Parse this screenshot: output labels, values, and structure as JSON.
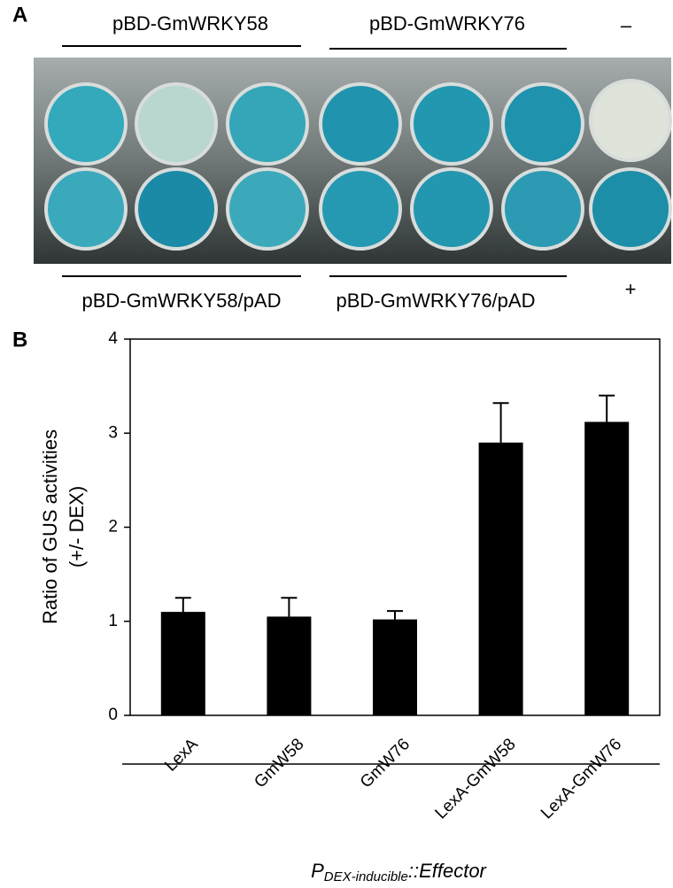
{
  "panel_a": {
    "label": "A",
    "top_labels": [
      "pBD-GmWRKY58",
      "pBD-GmWRKY76",
      "–"
    ],
    "bottom_labels": [
      "pBD-GmWRKY58/pAD",
      "pBD-GmWRKY76/pAD",
      "+"
    ]
  },
  "chart_data": {
    "type": "bar",
    "panel_label": "B",
    "ylabel": [
      "Ratio of GUS activities",
      "(+/- DEX)"
    ],
    "xlabel": {
      "main": "P",
      "subscript": "DEX-inducible",
      "suffix": "::Effector"
    },
    "categories": [
      "LexA",
      "GmW58",
      "GmW76",
      "LexA-GmW58",
      "LexA-GmW76"
    ],
    "values": [
      1.1,
      1.05,
      1.02,
      2.9,
      3.12
    ],
    "errors": [
      0.15,
      0.2,
      0.09,
      0.42,
      0.28
    ],
    "color": "#000000",
    "ylim": [
      0,
      4
    ],
    "yticks": [
      0,
      1,
      2,
      3,
      4
    ]
  }
}
